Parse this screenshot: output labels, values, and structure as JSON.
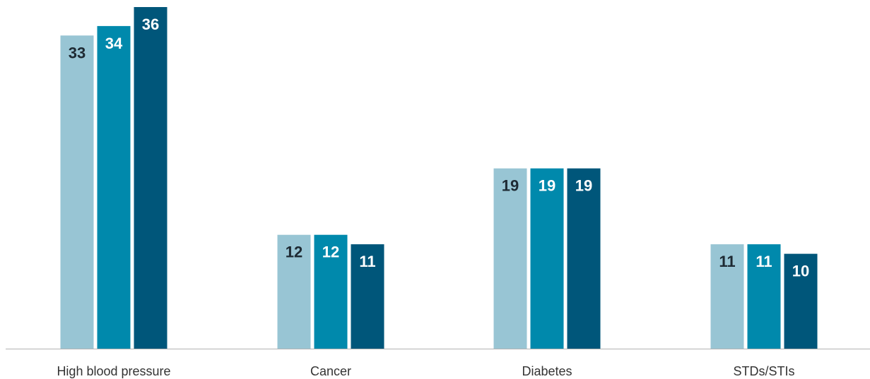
{
  "chart_data": {
    "type": "bar",
    "title": "",
    "xlabel": "",
    "ylabel": "",
    "ylim": [
      0,
      36
    ],
    "grid": false,
    "categories": [
      "High blood pressure",
      "Cancer",
      "Diabetes",
      "STDs/STIs"
    ],
    "series": [
      {
        "values": [
          33,
          12,
          19,
          11
        ],
        "color": "#98c5d4",
        "label_color": "#1e2a33"
      },
      {
        "values": [
          34,
          12,
          19,
          11
        ],
        "color": "#0089ac",
        "label_color": "#ffffff"
      },
      {
        "values": [
          36,
          11,
          19,
          10
        ],
        "color": "#00567a",
        "label_color": "#ffffff"
      }
    ],
    "axis_color": "#b3b3b3"
  }
}
